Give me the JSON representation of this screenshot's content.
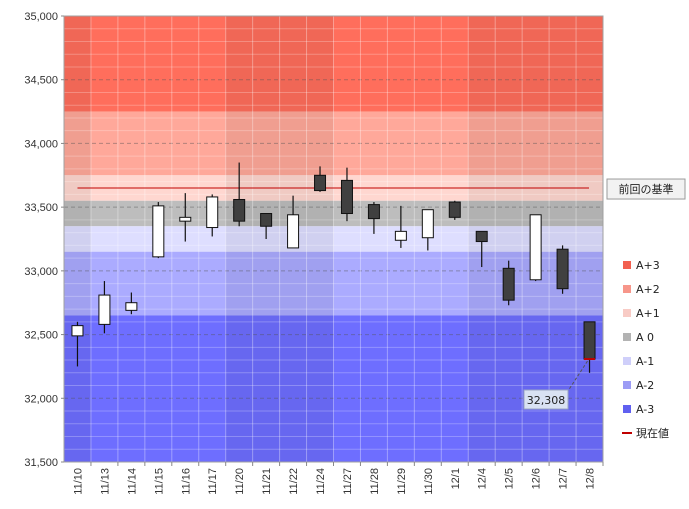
{
  "chart_data": {
    "type": "candlestick",
    "ylim": [
      31500,
      35000
    ],
    "yticks": [
      31500,
      32000,
      32500,
      33000,
      33500,
      34000,
      34500,
      35000
    ],
    "ytick_labels": [
      "31,500",
      "32,000",
      "32,500",
      "33,000",
      "33,500",
      "34,000",
      "34,500",
      "35,000"
    ],
    "categories": [
      "11/10",
      "11/13",
      "11/14",
      "11/15",
      "11/16",
      "11/17",
      "11/20",
      "11/21",
      "11/22",
      "11/24",
      "11/27",
      "11/28",
      "11/29",
      "11/30",
      "12/1",
      "12/4",
      "12/5",
      "12/6",
      "12/7",
      "12/8"
    ],
    "candles": [
      {
        "open": 32490,
        "high": 32600,
        "low": 32250,
        "close": 32570
      },
      {
        "open": 32580,
        "high": 32920,
        "low": 32510,
        "close": 32810
      },
      {
        "open": 32690,
        "high": 32830,
        "low": 32660,
        "close": 32750
      },
      {
        "open": 33110,
        "high": 33540,
        "low": 33100,
        "close": 33510
      },
      {
        "open": 33390,
        "high": 33610,
        "low": 33230,
        "close": 33420
      },
      {
        "open": 33340,
        "high": 33600,
        "low": 33270,
        "close": 33580
      },
      {
        "open": 33560,
        "high": 33850,
        "low": 33350,
        "close": 33390
      },
      {
        "open": 33450,
        "high": 33450,
        "low": 33250,
        "close": 33350
      },
      {
        "open": 33180,
        "high": 33590,
        "low": 33180,
        "close": 33440
      },
      {
        "open": 33750,
        "high": 33820,
        "low": 33620,
        "close": 33630
      },
      {
        "open": 33710,
        "high": 33810,
        "low": 33390,
        "close": 33450
      },
      {
        "open": 33520,
        "high": 33540,
        "low": 33290,
        "close": 33410
      },
      {
        "open": 33240,
        "high": 33510,
        "low": 33180,
        "close": 33310
      },
      {
        "open": 33260,
        "high": 33480,
        "low": 33160,
        "close": 33480
      },
      {
        "open": 33540,
        "high": 33550,
        "low": 33400,
        "close": 33420
      },
      {
        "open": 33310,
        "high": 33310,
        "low": 33030,
        "close": 33230
      },
      {
        "open": 33020,
        "high": 33080,
        "low": 32730,
        "close": 32770
      },
      {
        "open": 32930,
        "high": 33440,
        "low": 32920,
        "close": 33440
      },
      {
        "open": 33170,
        "high": 33200,
        "low": 32820,
        "close": 32860
      },
      {
        "open": 32600,
        "high": 32600,
        "low": 32200,
        "close": 32308
      }
    ],
    "reference_line": {
      "value": 33650,
      "label": "前回の基準",
      "color": "#c00000"
    },
    "zones": [
      {
        "name": "A+3",
        "from": 34250,
        "to": 35000,
        "color": "#ff6e5c",
        "legend_color": "#f26050"
      },
      {
        "name": "A+2",
        "from": 33750,
        "to": 34250,
        "color": "#ffa89a",
        "legend_color": "#f7968a"
      },
      {
        "name": "A+1",
        "from": 33550,
        "to": 33750,
        "color": "#ffd7d0",
        "legend_color": "#f8cbc5"
      },
      {
        "name": "A 0",
        "from": 33350,
        "to": 33550,
        "color": "#bdbdbd",
        "legend_color": "#b3b3b3"
      },
      {
        "name": "A-1",
        "from": 33150,
        "to": 33350,
        "color": "#dedeff",
        "legend_color": "#cfcffa"
      },
      {
        "name": "A-2",
        "from": 32650,
        "to": 33150,
        "color": "#ababff",
        "legend_color": "#9c9cf5"
      },
      {
        "name": "A-3",
        "from": 31500,
        "to": 32650,
        "color": "#6e6eff",
        "legend_color": "#6060f0"
      }
    ],
    "legend": [
      {
        "name": "A+3",
        "type": "box",
        "color": "#f26050"
      },
      {
        "name": "A+2",
        "type": "box",
        "color": "#f7968a"
      },
      {
        "name": "A+1",
        "type": "box",
        "color": "#f8cbc5"
      },
      {
        "name": "A 0",
        "type": "box",
        "color": "#b3b3b3"
      },
      {
        "name": "A-1",
        "type": "box",
        "color": "#cfcffa"
      },
      {
        "name": "A-2",
        "type": "box",
        "color": "#9c9cf5"
      },
      {
        "name": "A-3",
        "type": "box",
        "color": "#6060f0"
      },
      {
        "name": "現在値",
        "type": "line",
        "color": "#c00000"
      }
    ],
    "current_value": {
      "value": 32308,
      "label": "32,308"
    },
    "legend_placement": "right",
    "grid": true
  }
}
